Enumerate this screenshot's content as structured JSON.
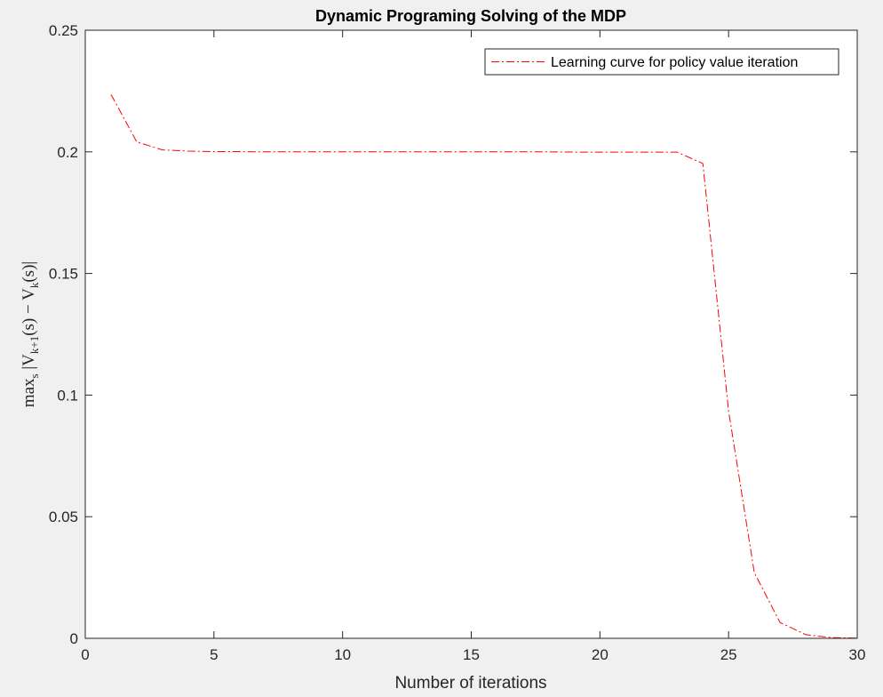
{
  "chart_data": {
    "type": "line",
    "title": "Dynamic Programing Solving of the MDP",
    "xlabel": "Number of iterations",
    "ylabel": "max_s |V_{k+1}(s) − V_k(s)|",
    "ylabel_parts": {
      "max": "max",
      "sub_s": "s",
      "body1": " |V",
      "sub_k1": "k+1",
      "body2": "(s) − V",
      "sub_k": "k",
      "body3": "(s)|"
    },
    "xlim": [
      0,
      30
    ],
    "ylim": [
      0,
      0.25
    ],
    "xticks": [
      "0",
      "5",
      "10",
      "15",
      "20",
      "25",
      "30"
    ],
    "yticks": [
      "0",
      "0.05",
      "0.1",
      "0.15",
      "0.2",
      "0.25"
    ],
    "grid": false,
    "legend_position": "top-right",
    "series": [
      {
        "name": "Learning curve for policy value iteration",
        "color": "#ff0000",
        "line_style": "dash-dot",
        "x": [
          1,
          2,
          3,
          4,
          5,
          6,
          7,
          8,
          9,
          10,
          11,
          12,
          13,
          14,
          15,
          16,
          17,
          18,
          19,
          20,
          21,
          22,
          23,
          24,
          25,
          26,
          27,
          28,
          29,
          30
        ],
        "values": [
          0.2236,
          0.2041,
          0.2008,
          0.2003,
          0.2001,
          0.2001,
          0.2,
          0.2,
          0.2,
          0.2,
          0.2,
          0.2,
          0.2,
          0.2,
          0.2,
          0.2,
          0.2,
          0.2,
          0.1999,
          0.1999,
          0.1999,
          0.1999,
          0.1999,
          0.1952,
          0.0935,
          0.027,
          0.0065,
          0.0015,
          0.0003,
          0.0001
        ]
      }
    ]
  },
  "colors": {
    "figure_bg": "#f0f0f0",
    "axes_bg": "#ffffff",
    "axes_line": "#262626",
    "series": "#ff0000"
  }
}
